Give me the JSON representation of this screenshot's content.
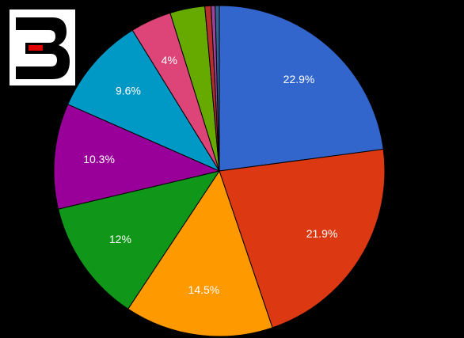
{
  "chart_data": {
    "type": "pie",
    "values": [
      22.9,
      21.9,
      14.5,
      12,
      10.3,
      9.6,
      4,
      3.4,
      0.6,
      0.4,
      0.4
    ],
    "value_labels": [
      "22.9%",
      "21.9%",
      "14.5%",
      "12%",
      "10.3%",
      "9.6%",
      "4%",
      null,
      null,
      null,
      null
    ],
    "colors": [
      "#3366cc",
      "#dc3912",
      "#ff9900",
      "#109618",
      "#990099",
      "#0099c6",
      "#dd4477",
      "#66aa00",
      "#b82e2e",
      "#994499",
      "#316395"
    ]
  }
}
